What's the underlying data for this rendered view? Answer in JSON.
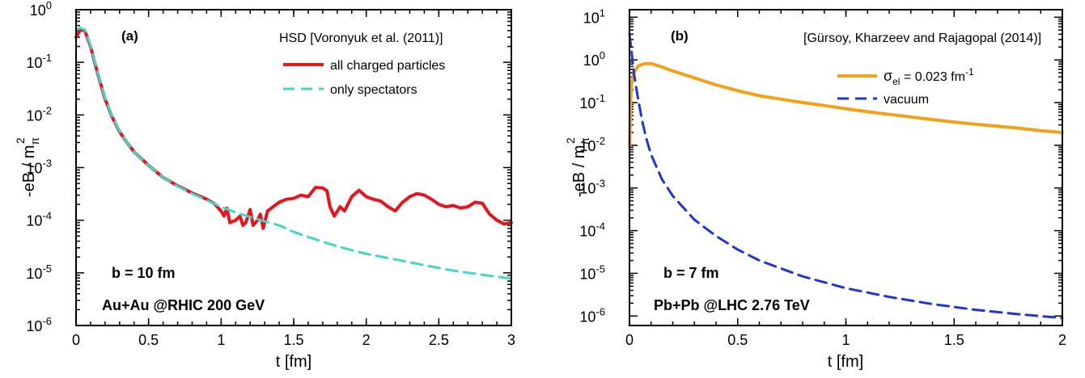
{
  "chart_data": [
    {
      "type": "line",
      "panel_label": "(a)",
      "xlabel": "t  [fm]",
      "ylabel": "-eB / m",
      "ylabel_sub": "π",
      "ylabel_sup": "2",
      "xlim": [
        0,
        3
      ],
      "ylim": [
        1e-06,
        1
      ],
      "yscale": "log",
      "xticks": [
        {
          "value": 0,
          "label": "0"
        },
        {
          "value": 0.5,
          "label": "0.5"
        },
        {
          "value": 1,
          "label": "1"
        },
        {
          "value": 1.5,
          "label": "1.5"
        },
        {
          "value": 2,
          "label": "2"
        },
        {
          "value": 2.5,
          "label": "2.5"
        },
        {
          "value": 3,
          "label": "3"
        }
      ],
      "yticks": [
        {
          "value": 1e-06,
          "base": "10",
          "exp": "-6"
        },
        {
          "value": 1e-05,
          "base": "10",
          "exp": "-5"
        },
        {
          "value": 0.0001,
          "base": "10",
          "exp": "-4"
        },
        {
          "value": 0.001,
          "base": "10",
          "exp": "-3"
        },
        {
          "value": 0.01,
          "base": "10",
          "exp": "-2"
        },
        {
          "value": 0.1,
          "base": "10",
          "exp": "-1"
        },
        {
          "value": 1,
          "base": "10",
          "exp": "0"
        }
      ],
      "legend_title": "HSD  [Voronyuk et al. (2011)]",
      "legend_placement": "top-right",
      "annotations": [
        "b = 10 fm",
        "Au+Au @RHIC 200 GeV"
      ],
      "series": [
        {
          "name": "all charged particles",
          "color": "#e8141b",
          "dash": "solid",
          "points": [
            [
              0,
              0.3
            ],
            [
              0.03,
              0.42
            ],
            [
              0.06,
              0.4
            ],
            [
              0.1,
              0.2
            ],
            [
              0.15,
              0.06
            ],
            [
              0.2,
              0.02
            ],
            [
              0.25,
              0.009
            ],
            [
              0.3,
              0.0048
            ],
            [
              0.35,
              0.003
            ],
            [
              0.4,
              0.002
            ],
            [
              0.5,
              0.0011
            ],
            [
              0.6,
              0.00065
            ],
            [
              0.7,
              0.00045
            ],
            [
              0.8,
              0.00033
            ],
            [
              0.9,
              0.00025
            ],
            [
              0.95,
              0.00021
            ],
            [
              1.0,
              0.00015
            ],
            [
              1.02,
              0.00012
            ],
            [
              1.04,
              0.00017
            ],
            [
              1.06,
              9e-05
            ],
            [
              1.1,
              0.0001
            ],
            [
              1.13,
              0.00012
            ],
            [
              1.15,
              8e-05
            ],
            [
              1.17,
              9e-05
            ],
            [
              1.2,
              0.00016
            ],
            [
              1.22,
              8e-05
            ],
            [
              1.25,
              0.0001
            ],
            [
              1.27,
              0.00013
            ],
            [
              1.29,
              7e-05
            ],
            [
              1.32,
              0.00015
            ],
            [
              1.4,
              0.00022
            ],
            [
              1.45,
              0.00025
            ],
            [
              1.5,
              0.00026
            ],
            [
              1.55,
              0.0003
            ],
            [
              1.6,
              0.00028
            ],
            [
              1.65,
              0.00042
            ],
            [
              1.7,
              0.00041
            ],
            [
              1.73,
              0.00036
            ],
            [
              1.75,
              0.00018
            ],
            [
              1.78,
              0.00012
            ],
            [
              1.82,
              0.00018
            ],
            [
              1.85,
              0.00015
            ],
            [
              1.9,
              0.00028
            ],
            [
              1.95,
              0.00037
            ],
            [
              2.0,
              0.00028
            ],
            [
              2.05,
              0.00025
            ],
            [
              2.1,
              0.00023
            ],
            [
              2.15,
              0.00018
            ],
            [
              2.2,
              0.00015
            ],
            [
              2.25,
              0.00022
            ],
            [
              2.3,
              0.00028
            ],
            [
              2.35,
              0.00032
            ],
            [
              2.4,
              0.0003
            ],
            [
              2.45,
              0.00025
            ],
            [
              2.5,
              0.0002
            ],
            [
              2.55,
              0.00018
            ],
            [
              2.6,
              0.00019
            ],
            [
              2.65,
              0.00017
            ],
            [
              2.7,
              0.00018
            ],
            [
              2.75,
              0.00022
            ],
            [
              2.8,
              0.00021
            ],
            [
              2.85,
              0.00013
            ],
            [
              2.9,
              0.0001
            ],
            [
              2.95,
              8.5e-05
            ],
            [
              3.0,
              9e-05
            ]
          ]
        },
        {
          "name": "only spectators",
          "color": "#40d6cc",
          "dash": "dashed",
          "points": [
            [
              0,
              0.42
            ],
            [
              0.03,
              0.45
            ],
            [
              0.06,
              0.42
            ],
            [
              0.1,
              0.21
            ],
            [
              0.15,
              0.062
            ],
            [
              0.2,
              0.021
            ],
            [
              0.25,
              0.0092
            ],
            [
              0.3,
              0.0049
            ],
            [
              0.35,
              0.003
            ],
            [
              0.4,
              0.002
            ],
            [
              0.5,
              0.0011
            ],
            [
              0.6,
              0.00065
            ],
            [
              0.7,
              0.00044
            ],
            [
              0.8,
              0.00032
            ],
            [
              0.9,
              0.00024
            ],
            [
              1.0,
              0.00018
            ],
            [
              1.1,
              0.00014
            ],
            [
              1.2,
              0.000115
            ],
            [
              1.3,
              9.5e-05
            ],
            [
              1.4,
              8e-05
            ],
            [
              1.5,
              6e-05
            ],
            [
              1.6,
              4.8e-05
            ],
            [
              1.7,
              3.9e-05
            ],
            [
              1.8,
              3.2e-05
            ],
            [
              1.9,
              2.7e-05
            ],
            [
              2.0,
              2.3e-05
            ],
            [
              2.2,
              1.8e-05
            ],
            [
              2.4,
              1.4e-05
            ],
            [
              2.6,
              1.1e-05
            ],
            [
              2.8,
              9.2e-06
            ],
            [
              3.0,
              7.8e-06
            ]
          ]
        }
      ]
    },
    {
      "type": "line",
      "panel_label": "(b)",
      "xlabel": "t  [fm]",
      "ylabel": "-eB / m",
      "ylabel_sub": "π",
      "ylabel_sup": "2",
      "xlim": [
        0,
        2
      ],
      "ylim": [
        6e-07,
        15
      ],
      "yscale": "log",
      "xticks": [
        {
          "value": 0,
          "label": "0"
        },
        {
          "value": 0.5,
          "label": "0.5"
        },
        {
          "value": 1,
          "label": "1"
        },
        {
          "value": 1.5,
          "label": "1.5"
        },
        {
          "value": 2,
          "label": "2"
        }
      ],
      "yticks": [
        {
          "value": 1e-06,
          "base": "10",
          "exp": "-6"
        },
        {
          "value": 1e-05,
          "base": "10",
          "exp": "-5"
        },
        {
          "value": 0.0001,
          "base": "10",
          "exp": "-4"
        },
        {
          "value": 0.001,
          "base": "10",
          "exp": "-3"
        },
        {
          "value": 0.01,
          "base": "10",
          "exp": "-2"
        },
        {
          "value": 0.1,
          "base": "10",
          "exp": "-1"
        },
        {
          "value": 1,
          "base": "10",
          "exp": "0"
        },
        {
          "value": 10,
          "base": "10",
          "exp": "1"
        }
      ],
      "legend_title": "[Gürsoy, Kharzeev and Rajagopal (2014)]",
      "legend_placement": "top-right",
      "annotations": [
        "b = 7 fm",
        "Pb+Pb @LHC 2.76 TeV"
      ],
      "series": [
        {
          "name": "σ",
          "name_sub": "el",
          "name_rest": " = 0.023 fm",
          "name_sup": "-1",
          "color": "#f5a019",
          "dash": "solid",
          "points": [
            [
              0.001,
              0.01
            ],
            [
              0.005,
              0.1
            ],
            [
              0.01,
              0.3
            ],
            [
              0.02,
              0.5
            ],
            [
              0.04,
              0.72
            ],
            [
              0.07,
              0.82
            ],
            [
              0.1,
              0.82
            ],
            [
              0.15,
              0.68
            ],
            [
              0.2,
              0.55
            ],
            [
              0.3,
              0.38
            ],
            [
              0.4,
              0.26
            ],
            [
              0.5,
              0.19
            ],
            [
              0.6,
              0.145
            ],
            [
              0.7,
              0.12
            ],
            [
              0.8,
              0.1
            ],
            [
              0.9,
              0.085
            ],
            [
              1.0,
              0.072
            ],
            [
              1.1,
              0.061
            ],
            [
              1.2,
              0.053
            ],
            [
              1.3,
              0.046
            ],
            [
              1.4,
              0.04
            ],
            [
              1.5,
              0.035
            ],
            [
              1.6,
              0.031
            ],
            [
              1.7,
              0.028
            ],
            [
              1.8,
              0.025
            ],
            [
              1.9,
              0.022
            ],
            [
              2.0,
              0.02
            ]
          ]
        },
        {
          "name": "vacuum",
          "color": "#1f35d4",
          "dash": "dashed",
          "points": [
            [
              0,
              4.0
            ],
            [
              0.01,
              1.5
            ],
            [
              0.02,
              0.5
            ],
            [
              0.04,
              0.12
            ],
            [
              0.06,
              0.035
            ],
            [
              0.08,
              0.013
            ],
            [
              0.1,
              0.006
            ],
            [
              0.15,
              0.0016
            ],
            [
              0.2,
              0.00065
            ],
            [
              0.3,
              0.00018
            ],
            [
              0.4,
              7.5e-05
            ],
            [
              0.5,
              3.6e-05
            ],
            [
              0.6,
              2e-05
            ],
            [
              0.7,
              1.3e-05
            ],
            [
              0.8,
              8.5e-06
            ],
            [
              1.0,
              4.5e-06
            ],
            [
              1.2,
              2.8e-06
            ],
            [
              1.4,
              1.9e-06
            ],
            [
              1.6,
              1.4e-06
            ],
            [
              1.8,
              1.1e-06
            ],
            [
              2.0,
              9e-07
            ]
          ]
        }
      ]
    }
  ]
}
